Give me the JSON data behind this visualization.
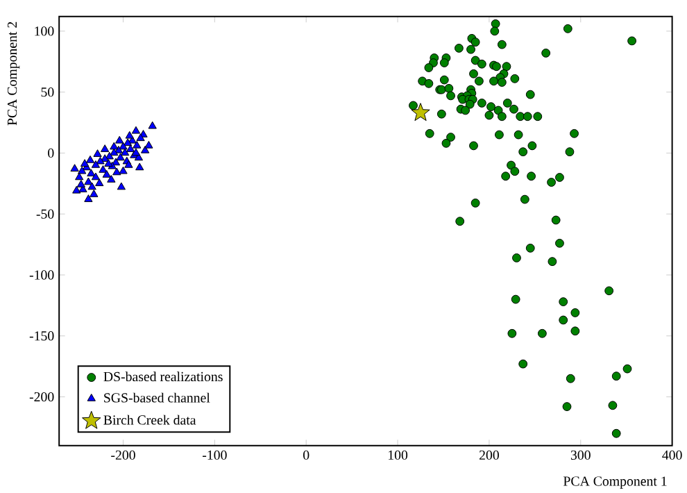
{
  "chart_data": {
    "type": "scatter",
    "xlabel": "PCA Component 1",
    "ylabel": "PCA Component 2",
    "xlim": [
      -270,
      400
    ],
    "ylim": [
      -240,
      112
    ],
    "xticks": [
      -200,
      -100,
      0,
      100,
      200,
      300,
      400
    ],
    "yticks": [
      -200,
      -150,
      -100,
      -50,
      0,
      50,
      100
    ],
    "legend": "bottom left",
    "grid": false,
    "series": [
      {
        "name": "DS-based realizations",
        "color": "#008000",
        "marker": "circle",
        "x": [
          207,
          206,
          286,
          356,
          181,
          185,
          167,
          180,
          214,
          262,
          140,
          153,
          139,
          151,
          185,
          192,
          134,
          205,
          208,
          219,
          183,
          216,
          212,
          214,
          205,
          228,
          127,
          134,
          151,
          189,
          146,
          148,
          156,
          158,
          180,
          181,
          170,
          176,
          171,
          178,
          182,
          179,
          192,
          245,
          117,
          202,
          210,
          220,
          227,
          148,
          169,
          174,
          200,
          214,
          234,
          242,
          253,
          135,
          158,
          153,
          183,
          211,
          232,
          293,
          237,
          247,
          288,
          224,
          228,
          218,
          246,
          277,
          268,
          185,
          239,
          168,
          273,
          277,
          245,
          230,
          269,
          331,
          229,
          281,
          294,
          281,
          225,
          258,
          294,
          237,
          351,
          339,
          289,
          285,
          335,
          339
        ],
        "values": [
          106,
          100,
          102,
          92,
          94,
          91,
          86,
          85,
          89,
          82,
          78,
          78,
          74,
          74,
          76,
          73,
          70,
          72,
          71,
          71,
          65,
          65,
          62,
          58,
          59,
          61,
          59,
          57,
          60,
          59,
          52,
          52,
          53,
          47,
          52,
          49,
          46,
          47,
          44,
          44,
          44,
          40,
          41,
          48,
          39,
          38,
          35,
          41,
          36,
          32,
          36,
          35,
          31,
          30,
          30,
          30,
          30,
          16,
          13,
          8,
          6,
          15,
          15,
          16,
          1,
          6,
          1,
          -10,
          -15,
          -19,
          -19,
          -20,
          -24,
          -41,
          -38,
          -56,
          -55,
          -74,
          -78,
          -86,
          -89,
          -113,
          -120,
          -122,
          -131,
          -137,
          -148,
          -148,
          -146,
          -173,
          -177,
          -183,
          -185,
          -208,
          -207,
          -230
        ]
      },
      {
        "name": "SGS-based channel",
        "color": "#0000ff",
        "marker": "triangle",
        "x": [
          -168,
          -186,
          -178,
          -181,
          -190,
          -195,
          -185,
          -200,
          -192,
          -205,
          -198,
          -210,
          -188,
          -215,
          -203,
          -220,
          -196,
          -225,
          -208,
          -230,
          -212,
          -240,
          -253,
          -245,
          -222,
          -235,
          -200,
          -248,
          -230,
          -218,
          -238,
          -251,
          -244,
          -202,
          -238,
          -232,
          -226,
          -213,
          -207,
          -194,
          -183,
          -176,
          -172,
          -182,
          -216,
          -228,
          -236,
          -242,
          -210,
          -204,
          -193,
          -186,
          -220,
          -246,
          -234
        ],
        "values": [
          22,
          18,
          15,
          12,
          10,
          8,
          6,
          5,
          3,
          2,
          0,
          0,
          -2,
          -3,
          -4,
          -5,
          -7,
          -7,
          -8,
          -10,
          -11,
          -12,
          -13,
          -15,
          -14,
          -17,
          -15,
          -20,
          -20,
          -18,
          -24,
          -31,
          -30,
          -28,
          -38,
          -34,
          -25,
          -22,
          -16,
          -10,
          -4,
          2,
          6,
          -12,
          -9,
          -1,
          -6,
          -9,
          5,
          10,
          14,
          0,
          3,
          -26,
          -28
        ]
      },
      {
        "name": "Birch Creek data",
        "color": "#bfbf00",
        "marker": "star",
        "x": [
          125
        ],
        "values": [
          33
        ]
      }
    ]
  }
}
